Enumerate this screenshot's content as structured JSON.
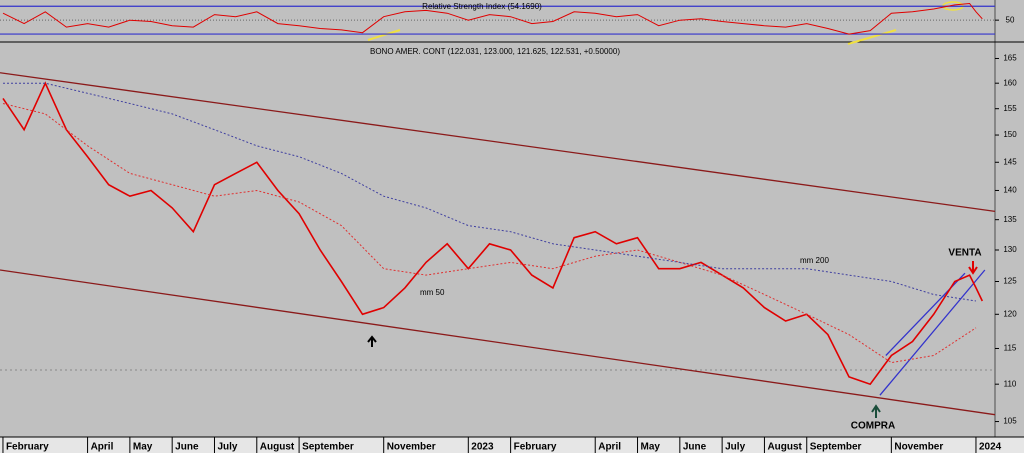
{
  "chart_data": [
    {
      "type": "line",
      "title": "Relative Strength Index (54.1690)",
      "xlim": [
        -0.07,
        23.45
      ],
      "ylim": [
        20,
        79
      ],
      "yticks": [
        50
      ],
      "grid": true,
      "levels": [
        30,
        70
      ],
      "level_color": "#3333cc",
      "series": [
        {
          "color": "#e00000",
          "x": [
            0,
            0.5,
            1,
            1.5,
            2,
            2.5,
            3,
            3.5,
            4,
            4.5,
            5,
            5.5,
            6,
            6.5,
            7,
            7.5,
            8,
            8.5,
            9,
            9.5,
            10,
            10.5,
            11,
            11.5,
            12,
            12.5,
            13,
            13.5,
            14,
            14.5,
            15,
            15.5,
            16,
            16.5,
            17,
            17.5,
            18,
            18.5,
            19,
            19.5,
            20,
            20.5,
            21,
            21.5,
            22,
            22.5,
            22.85,
            23,
            23.15
          ],
          "values": [
            60,
            45,
            62,
            40,
            45,
            40,
            50,
            48,
            42,
            40,
            58,
            55,
            62,
            45,
            42,
            38,
            36,
            32,
            55,
            62,
            64,
            60,
            50,
            58,
            55,
            45,
            48,
            62,
            60,
            55,
            58,
            42,
            50,
            52,
            48,
            45,
            42,
            40,
            45,
            38,
            30,
            35,
            60,
            62,
            66,
            72,
            74,
            62,
            52
          ]
        }
      ]
    },
    {
      "type": "line",
      "title": "BONO AMER. CONT (122.031, 123.000, 121.625, 122.531, +0.50000)",
      "xlim": [
        -0.07,
        23.45
      ],
      "ylim": [
        103,
        168
      ],
      "log_y": true,
      "grid": false,
      "yticks": [
        105,
        110,
        115,
        120,
        125,
        130,
        135,
        140,
        145,
        150,
        155,
        160,
        165
      ],
      "xticks": [
        {
          "value": 0,
          "label": "February"
        },
        {
          "value": 2,
          "label": "April"
        },
        {
          "value": 3,
          "label": "May"
        },
        {
          "value": 4,
          "label": "June"
        },
        {
          "value": 5,
          "label": "July"
        },
        {
          "value": 6,
          "label": "August"
        },
        {
          "value": 7,
          "label": "September"
        },
        {
          "value": 9,
          "label": "November"
        },
        {
          "value": 11,
          "label": "2023"
        },
        {
          "value": 12,
          "label": "February"
        },
        {
          "value": 14,
          "label": "April"
        },
        {
          "value": 15,
          "label": "May"
        },
        {
          "value": 16,
          "label": "June"
        },
        {
          "value": 17,
          "label": "July"
        },
        {
          "value": 18,
          "label": "August"
        },
        {
          "value": 19,
          "label": "September"
        },
        {
          "value": 21,
          "label": "November"
        },
        {
          "value": 23,
          "label": "2024"
        }
      ],
      "trendlines": [
        {
          "color": "#8b1a1a",
          "x": [
            -0.07,
            23.45
          ],
          "values": [
            162.1,
            136.4
          ]
        },
        {
          "color": "#8b1a1a",
          "x": [
            -0.07,
            23.45
          ],
          "values": [
            126.8,
            105.9
          ]
        },
        {
          "color": "#3333cc",
          "x": [
            20.87,
            22.74
          ],
          "values": [
            114.0,
            126.3
          ]
        },
        {
          "color": "#3333cc",
          "x": [
            20.73,
            23.21
          ],
          "values": [
            108.5,
            126.8
          ]
        }
      ],
      "series": [
        {
          "color": "#e00000",
          "width": 1.6,
          "x": [
            0,
            0.5,
            1,
            1.5,
            2,
            2.5,
            3,
            3.5,
            4,
            4.5,
            5,
            5.5,
            6,
            6.5,
            7,
            7.5,
            8,
            8.5,
            9,
            9.5,
            10,
            10.5,
            11,
            11.5,
            12,
            12.5,
            13,
            13.5,
            14,
            14.5,
            15,
            15.5,
            16,
            16.5,
            17,
            17.5,
            18,
            18.5,
            19,
            19.5,
            20,
            20.5,
            21,
            21.5,
            22,
            22.5,
            22.85,
            23,
            23.15
          ],
          "values": [
            157,
            151,
            160,
            151,
            146,
            141,
            139,
            140,
            137,
            133,
            141,
            143,
            145,
            140,
            136,
            130,
            125,
            120,
            121,
            124,
            128,
            131,
            127,
            131,
            130,
            126,
            124,
            132,
            133,
            131,
            132,
            127,
            127,
            128,
            126,
            124,
            121,
            119,
            120,
            117,
            111,
            110,
            114,
            116,
            120,
            125,
            126,
            124,
            122
          ]
        },
        {
          "name": "mm 50",
          "color": "#e03030",
          "dash": true,
          "x": [
            0,
            1,
            2,
            3,
            4,
            5,
            6,
            7,
            8,
            9,
            10,
            11,
            12,
            13,
            14,
            15,
            16,
            17,
            18,
            19,
            20,
            21,
            22,
            23
          ],
          "values": [
            156,
            154,
            148,
            143,
            141,
            139,
            140,
            138,
            134,
            127,
            126,
            127,
            128,
            127,
            129,
            130,
            128,
            126,
            123,
            120,
            117,
            113,
            114,
            118
          ]
        },
        {
          "name": "mm 200",
          "color": "#4040a0",
          "dash": true,
          "x": [
            0,
            1,
            2,
            3,
            4,
            5,
            6,
            7,
            8,
            9,
            10,
            11,
            12,
            13,
            14,
            15,
            16,
            17,
            18,
            19,
            20,
            21,
            22,
            23
          ],
          "values": [
            160,
            160,
            158,
            156,
            154,
            151,
            148,
            146,
            143,
            139,
            137,
            134,
            133,
            131,
            130,
            129,
            128,
            127,
            127,
            127,
            126,
            125,
            123,
            122
          ]
        }
      ],
      "annotations": [
        "VENTA",
        "COMPRA"
      ]
    }
  ]
}
